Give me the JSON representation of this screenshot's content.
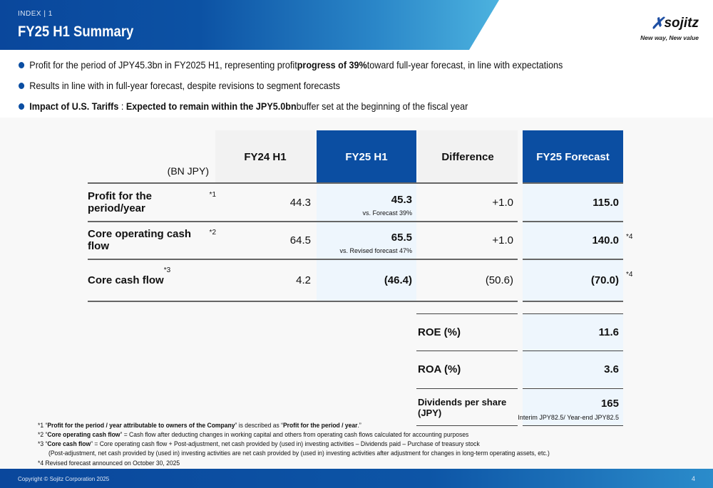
{
  "header": {
    "index": "INDEX | 1",
    "title": "FY25 H1 Summary",
    "logo": "sojitz",
    "tagline": "New way, New value"
  },
  "bullets": [
    {
      "pre": "Profit for the period of JPY45.3bn in FY2025 H1, representing profit ",
      "bold": "progress of 39%",
      "post": " toward full-year forecast, in line with expectations"
    },
    {
      "pre": "Results in line with in full-year forecast, despite revisions to segment forecasts",
      "bold": "",
      "post": ""
    },
    {
      "pre": "",
      "bold": "Impact of U.S. Tariffs",
      "mid": " : ",
      "bold2": "Expected to remain within the JPY5.0bn",
      "post": " buffer set at the beginning of the fiscal year"
    }
  ],
  "table": {
    "unit": "(BN JPY)",
    "headers": [
      "FY24 H1",
      "FY25 H1",
      "Difference",
      "FY25 Forecast"
    ],
    "rows": [
      {
        "label": "Profit for the period/year",
        "note": "*1",
        "fy24": "44.3",
        "fy25": "45.3",
        "fy25_sub": "vs. Forecast 39%",
        "diff": "+1.0",
        "forecast": "115.0",
        "fnote": ""
      },
      {
        "label": "Core operating cash flow",
        "note": "*2",
        "fy24": "64.5",
        "fy25": "65.5",
        "fy25_sub": "vs. Revised forecast 47%",
        "diff": "+1.0",
        "forecast": "140.0",
        "fnote": "*4"
      },
      {
        "label": "Core cash flow",
        "note": "*3",
        "fy24": "4.2",
        "fy25": "(46.4)",
        "fy25_sub": "",
        "diff": "(50.6)",
        "forecast": "(70.0)",
        "fnote": "*4"
      }
    ],
    "metrics": [
      {
        "label": "ROE (%)",
        "value": "11.6",
        "sub": ""
      },
      {
        "label": "ROA (%)",
        "value": "3.6",
        "sub": ""
      },
      {
        "label": "Dividends per share (JPY)",
        "value": "165",
        "sub": "Interim JPY82.5/ Year-end JPY82.5"
      }
    ]
  },
  "footnotes": [
    {
      "pre": "*1 “",
      "b1": "Profit for the period / year attributable to owners of the Company",
      "mid": "” is described as “",
      "b2": "Profit for the period / year",
      "post": ".”"
    },
    {
      "pre": "*2 “",
      "b1": "Core operating cash flow",
      "post": "” = Cash flow after deducting changes in working capital and others from operating cash flows calculated for accounting purposes"
    },
    {
      "pre": "*3 “",
      "b1": "Core cash flow",
      "post": "” = Core operating cash flow + Post-adjustment, net cash provided by (used in) investing activities – Dividends paid – Purchase of treasury stock"
    },
    {
      "pre": "(Post-adjustment, net cash provided by (used in) investing activities are net cash provided by (used in) investing activities after adjustment for changes in long-term operating assets, etc.)"
    },
    {
      "pre": "*4 Revised forecast announced on October 30, 2025"
    }
  ],
  "footer": {
    "copyright": "Copyright © Sojitz Corporation 2025",
    "page": "4"
  },
  "colors": {
    "brand": "#0b4ea2",
    "light": "#eef6fd"
  }
}
